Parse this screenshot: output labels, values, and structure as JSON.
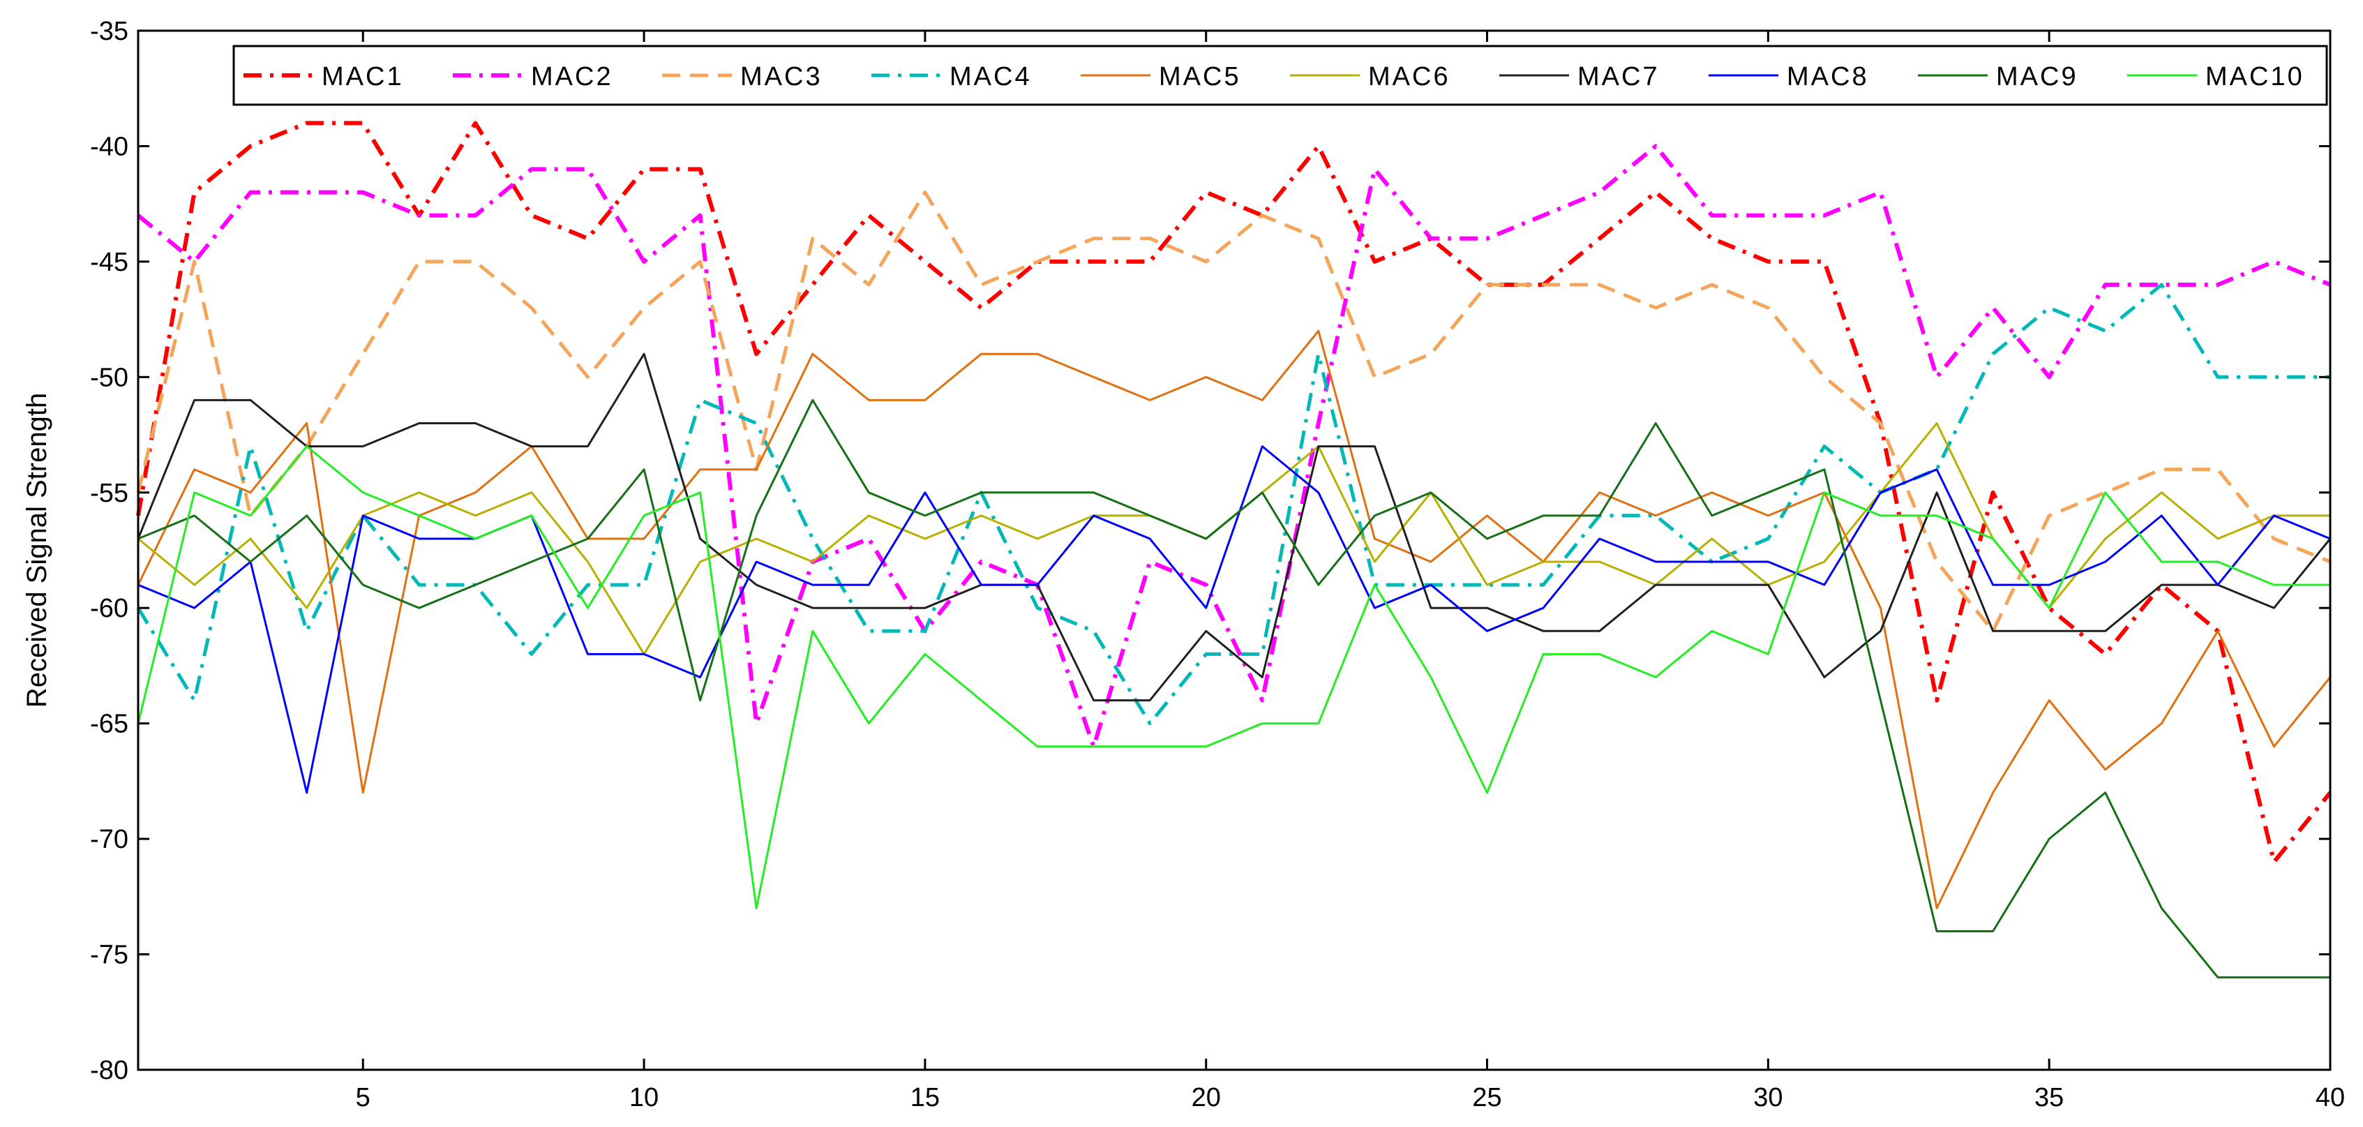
{
  "chart_data": {
    "type": "line",
    "title": "",
    "xlabel": "",
    "ylabel": "Received Signal Strength",
    "xlim": [
      1,
      40
    ],
    "ylim": [
      -80,
      -35
    ],
    "xticks": [
      5,
      10,
      15,
      20,
      25,
      30,
      35,
      40
    ],
    "yticks": [
      -35,
      -40,
      -45,
      -50,
      -55,
      -60,
      -65,
      -70,
      -75,
      -80
    ],
    "grid": false,
    "legend_position": "top",
    "x": [
      1,
      2,
      3,
      4,
      5,
      6,
      7,
      8,
      9,
      10,
      11,
      12,
      13,
      14,
      15,
      16,
      17,
      18,
      19,
      20,
      21,
      22,
      23,
      24,
      25,
      26,
      27,
      28,
      29,
      30,
      31,
      32,
      33,
      34,
      35,
      36,
      37,
      38,
      39,
      40
    ],
    "series": [
      {
        "name": "MAC1",
        "color": "#ff0000",
        "dash": "dashdot",
        "width": 6,
        "values": [
          -56,
          -42,
          -40,
          -39,
          -39,
          -43,
          -39,
          -43,
          -44,
          -41,
          -41,
          -49,
          -46,
          -43,
          -45,
          -47,
          -45,
          -45,
          -45,
          -42,
          -43,
          -40,
          -45,
          -44,
          -46,
          -46,
          -44,
          -42,
          -44,
          -45,
          -45,
          -52,
          -64,
          -55,
          -60,
          -62,
          -59,
          -61,
          -71,
          -68
        ]
      },
      {
        "name": "MAC2",
        "color": "#ff00ff",
        "dash": "dashdot",
        "width": 6,
        "values": [
          -43,
          -45,
          -42,
          -42,
          -42,
          -43,
          -43,
          -41,
          -41,
          -45,
          -43,
          -65,
          -58,
          -57,
          -61,
          -58,
          -59,
          -66,
          -58,
          -59,
          -64,
          -52,
          -41,
          -44,
          -44,
          -43,
          -42,
          -40,
          -43,
          -43,
          -43,
          -42,
          -50,
          -47,
          -50,
          -46,
          -46,
          -46,
          -45,
          -46
        ]
      },
      {
        "name": "MAC3",
        "color": "#f5a55a",
        "dash": "dash",
        "width": 5,
        "values": [
          -55,
          -45,
          -56,
          -53,
          -49,
          -45,
          -45,
          -47,
          -50,
          -47,
          -45,
          -54,
          -44,
          -46,
          -42,
          -46,
          -45,
          -44,
          -44,
          -45,
          -43,
          -44,
          -50,
          -49,
          -46,
          -46,
          -46,
          -47,
          -46,
          -47,
          -50,
          -52,
          -58,
          -61,
          -56,
          -55,
          -54,
          -54,
          -57,
          -58
        ]
      },
      {
        "name": "MAC4",
        "color": "#00b8b8",
        "dash": "dashdot",
        "width": 5,
        "values": [
          -60,
          -64,
          -53,
          -61,
          -56,
          -59,
          -59,
          -62,
          -59,
          -59,
          -51,
          -52,
          -57,
          -61,
          -61,
          -55,
          -60,
          -61,
          -65,
          -62,
          -62,
          -49,
          -59,
          -59,
          -59,
          -59,
          -56,
          -56,
          -58,
          -57,
          -53,
          -55,
          -54,
          -49,
          -47,
          -48,
          -46,
          -50,
          -50,
          -50
        ]
      },
      {
        "name": "MAC5",
        "color": "#e07010",
        "dash": "solid",
        "width": 3,
        "values": [
          -59,
          -54,
          -55,
          -52,
          -68,
          -56,
          -55,
          -53,
          -57,
          -57,
          -54,
          -54,
          -49,
          -51,
          -51,
          -49,
          -49,
          -50,
          -51,
          -50,
          -51,
          -48,
          -57,
          -58,
          -56,
          -58,
          -55,
          -56,
          -55,
          -56,
          -55,
          -60,
          -73,
          -68,
          -64,
          -67,
          -65,
          -61,
          -66,
          -63
        ]
      },
      {
        "name": "MAC6",
        "color": "#b8b000",
        "dash": "solid",
        "width": 3,
        "values": [
          -57,
          -59,
          -57,
          -60,
          -56,
          -55,
          -56,
          -55,
          -58,
          -62,
          -58,
          -57,
          -58,
          -56,
          -57,
          -56,
          -57,
          -56,
          -56,
          -57,
          -55,
          -53,
          -58,
          -55,
          -59,
          -58,
          -58,
          -59,
          -57,
          -59,
          -58,
          -55,
          -52,
          -57,
          -60,
          -57,
          -55,
          -57,
          -56,
          -56
        ]
      },
      {
        "name": "MAC7",
        "color": "#202020",
        "dash": "solid",
        "width": 3,
        "values": [
          -57,
          -51,
          -51,
          -53,
          -53,
          -52,
          -52,
          -53,
          -53,
          -49,
          -57,
          -59,
          -60,
          -60,
          -60,
          -59,
          -59,
          -64,
          -64,
          -61,
          -63,
          -53,
          -53,
          -60,
          -60,
          -61,
          -61,
          -59,
          -59,
          -59,
          -63,
          -61,
          -55,
          -61,
          -61,
          -61,
          -59,
          -59,
          -60,
          -57
        ]
      },
      {
        "name": "MAC8",
        "color": "#0000ff",
        "dash": "solid",
        "width": 3,
        "values": [
          -59,
          -60,
          -58,
          -68,
          -56,
          -57,
          -57,
          -56,
          -62,
          -62,
          -63,
          -58,
          -59,
          -59,
          -55,
          -59,
          -59,
          -56,
          -57,
          -60,
          -53,
          -55,
          -60,
          -59,
          -61,
          -60,
          -57,
          -58,
          -58,
          -58,
          -59,
          -55,
          -54,
          -59,
          -59,
          -58,
          -56,
          -59,
          -56,
          -57
        ]
      },
      {
        "name": "MAC9",
        "color": "#157015",
        "dash": "solid",
        "width": 3,
        "values": [
          -57,
          -56,
          -58,
          -56,
          -59,
          -60,
          -59,
          -58,
          -57,
          -54,
          -64,
          -56,
          -51,
          -55,
          -56,
          -55,
          -55,
          -55,
          -56,
          -57,
          -55,
          -59,
          -56,
          -55,
          -57,
          -56,
          -56,
          -52,
          -56,
          -55,
          -54,
          -64,
          -74,
          -74,
          -70,
          -68,
          -73,
          -76,
          -76,
          -76
        ]
      },
      {
        "name": "MAC10",
        "color": "#22ee22",
        "dash": "solid",
        "width": 3,
        "values": [
          -65,
          -55,
          -56,
          -53,
          -55,
          -56,
          -57,
          -56,
          -60,
          -56,
          -55,
          -73,
          -61,
          -65,
          -62,
          -64,
          -66,
          -66,
          -66,
          -66,
          -65,
          -65,
          -59,
          -63,
          -68,
          -62,
          -62,
          -63,
          -61,
          -62,
          -55,
          -56,
          -56,
          -57,
          -60,
          -55,
          -58,
          -58,
          -59,
          -59
        ]
      }
    ]
  }
}
